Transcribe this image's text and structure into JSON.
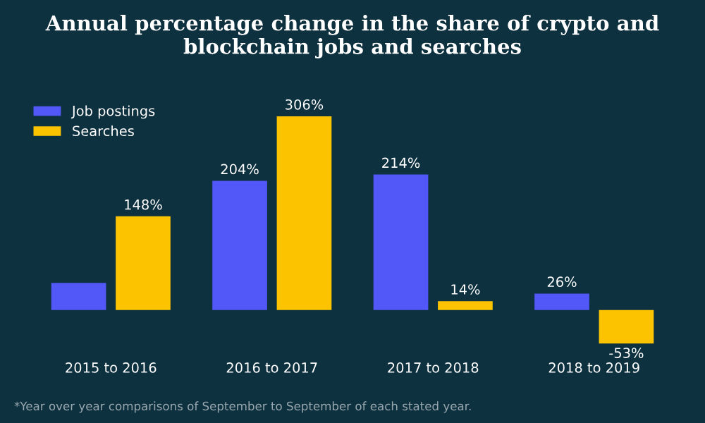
{
  "chart_data": {
    "type": "bar",
    "title": "Annual percentage change in the share of crypto and blockchain jobs and searches",
    "categories": [
      "2015 to 2016",
      "2016 to 2017",
      "2017 to 2018",
      "2018 to 2019"
    ],
    "series": [
      {
        "name": "Job postings",
        "color": "#5257f7",
        "values": [
          43,
          204,
          214,
          26
        ],
        "value_labels": [
          null,
          "204%",
          "214%",
          "26%"
        ]
      },
      {
        "name": "Searches",
        "color": "#fcc400",
        "values": [
          148,
          306,
          14,
          -53
        ],
        "value_labels": [
          "148%",
          "306%",
          "14%",
          "-53%"
        ]
      }
    ],
    "legend": "top left",
    "grid": false,
    "annotations": [
      "*Year over year comparisons of September to September of each stated year."
    ]
  }
}
